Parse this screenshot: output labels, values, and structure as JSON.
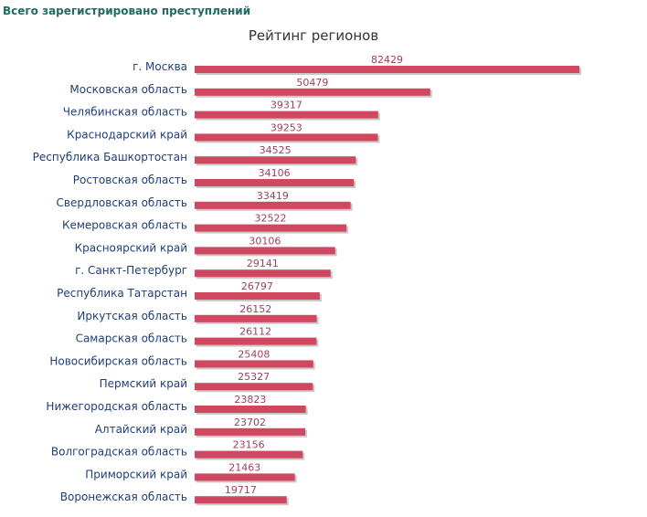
{
  "page": {
    "header": "Всего зарегистрировано преступлений"
  },
  "chart_data": {
    "type": "bar",
    "orientation": "horizontal",
    "title": "Рейтинг регионов",
    "categories": [
      "г. Москва",
      "Московская область",
      "Челябинская область",
      "Краснодарский край",
      "Республика Башкортостан",
      "Ростовская область",
      "Свердловская область",
      "Кемеровская область",
      "Красноярский край",
      "г. Санкт-Петербург",
      "Республика Татарстан",
      "Иркутская область",
      "Самарская область",
      "Новосибирская область",
      "Пермский край",
      "Нижегородская область",
      "Алтайский край",
      "Волгоградская область",
      "Приморский край",
      "Воронежская область"
    ],
    "values": [
      82429,
      50479,
      39317,
      39253,
      34525,
      34106,
      33419,
      32522,
      30106,
      29141,
      26797,
      26152,
      26112,
      25408,
      25327,
      23823,
      23702,
      23156,
      21463,
      19717
    ],
    "xlim": [
      0,
      82429
    ],
    "grid": false,
    "legend": "none",
    "colors": {
      "bar": "#d0485f",
      "bar_shadow": "#c9c9c9",
      "title": "#333333",
      "category_label": "#1f3f7a",
      "value_label": "#a0405a",
      "header": "#1f6b66"
    }
  }
}
